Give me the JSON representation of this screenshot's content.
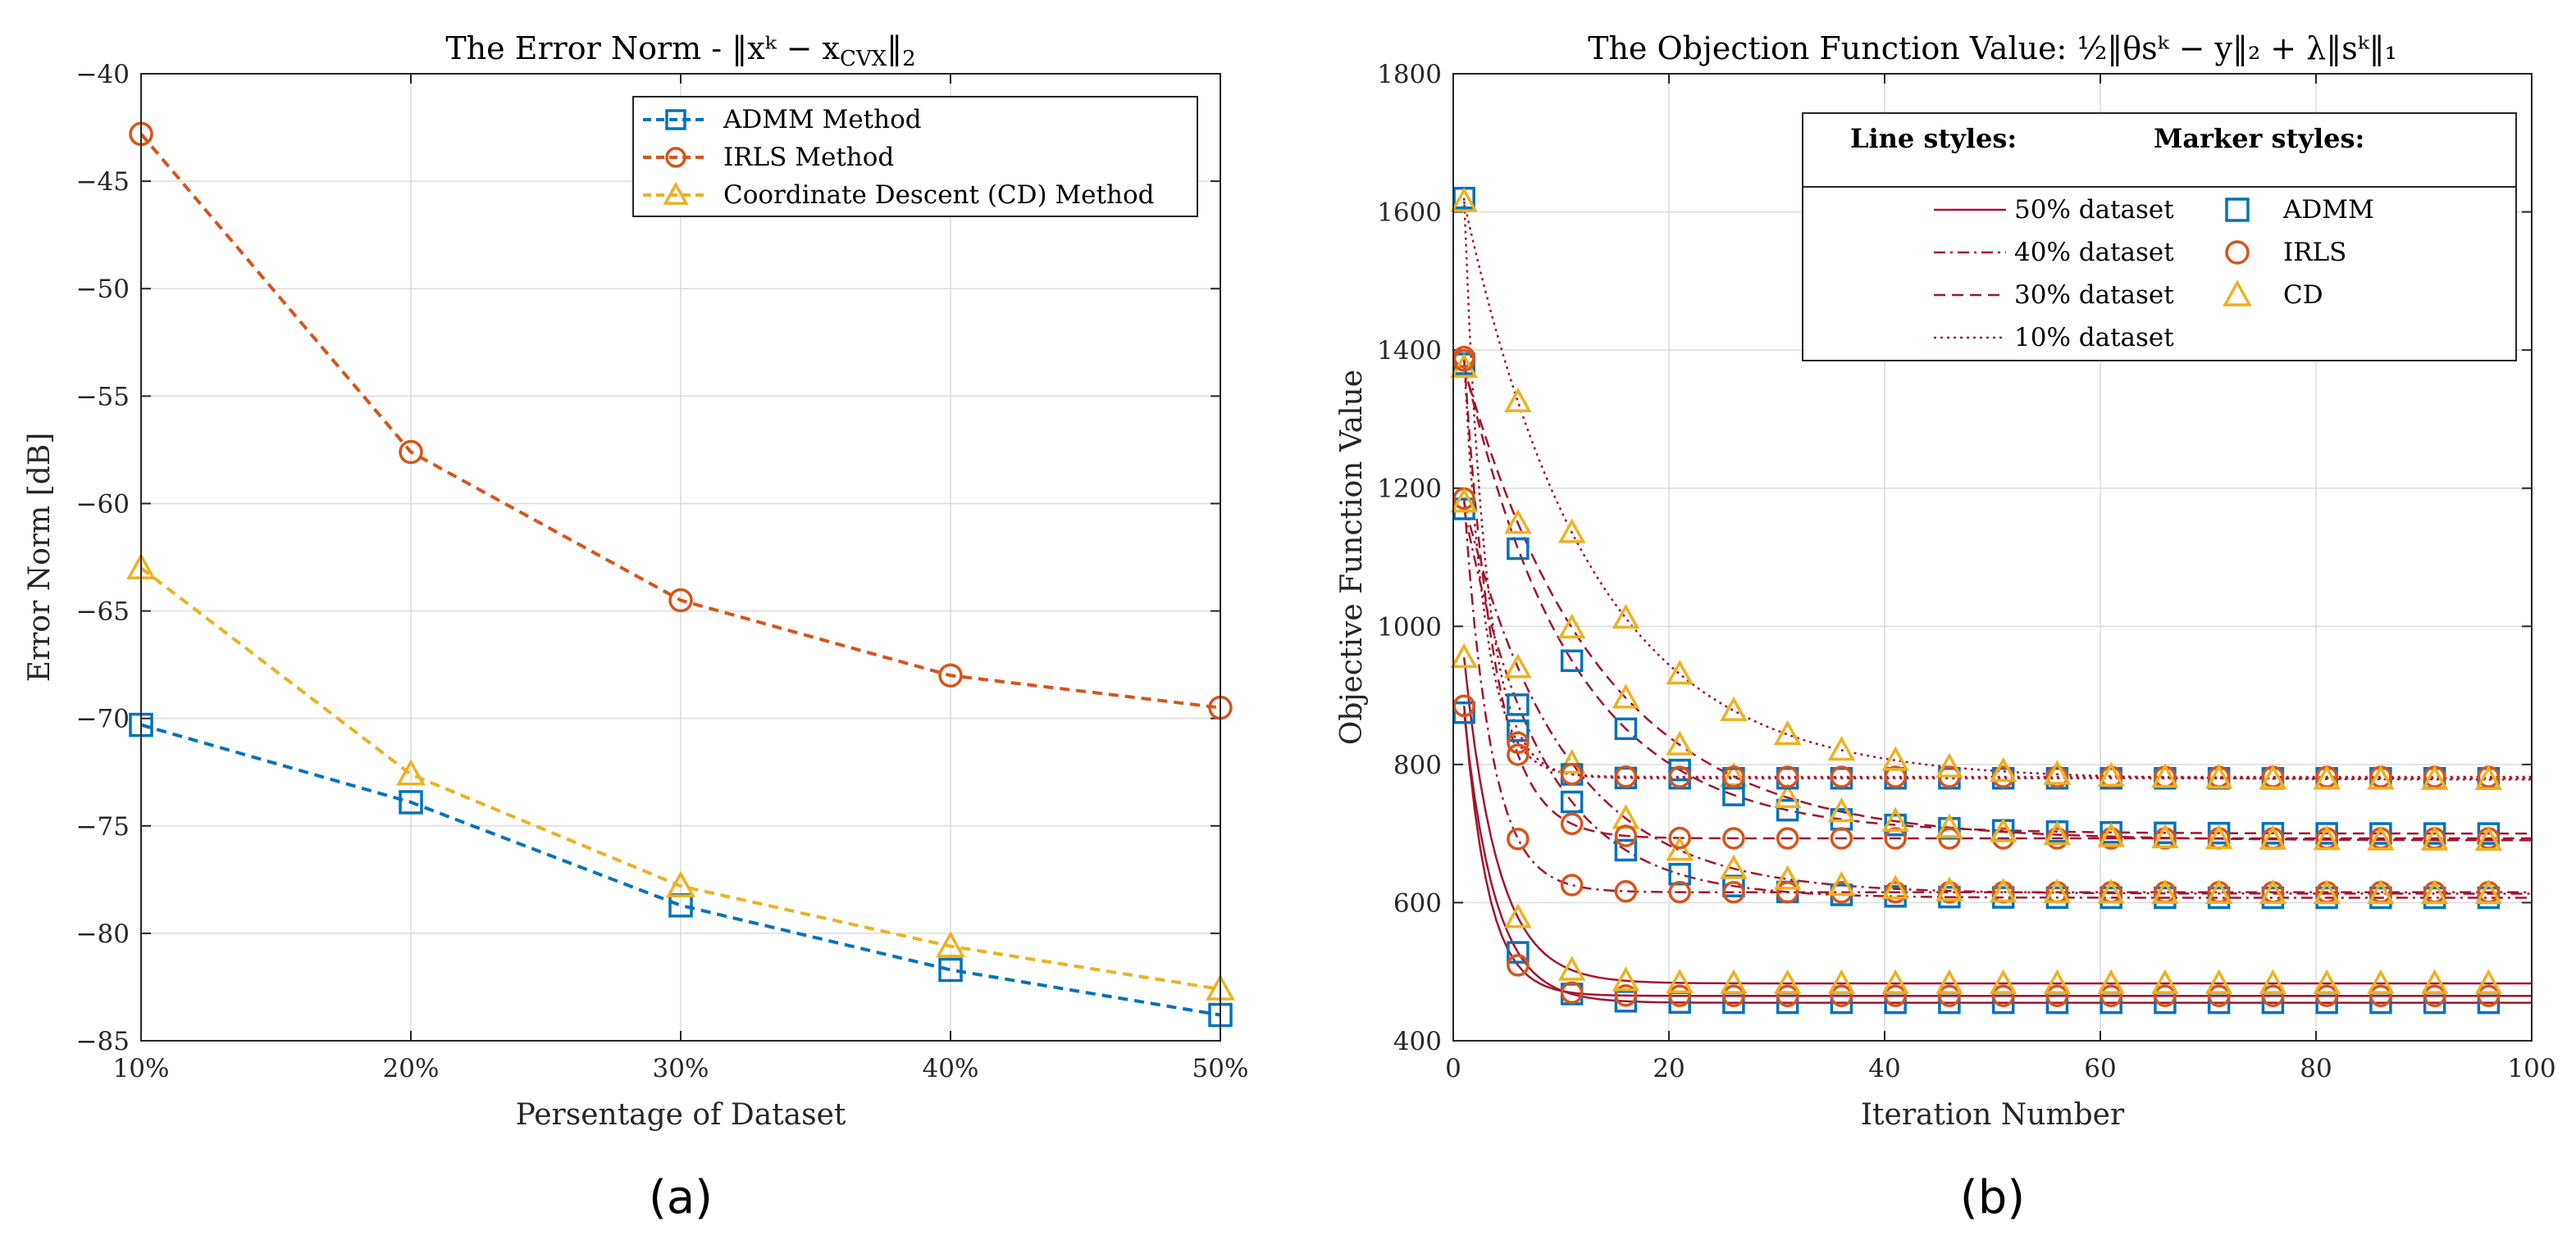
{
  "colors": {
    "admm": "#0072BD",
    "irls": "#D95319",
    "cd": "#EDB120",
    "curve": "#A2142F",
    "grid": "#dcdcdc",
    "axis": "#262626"
  },
  "chart_data": [
    {
      "panel": "a",
      "type": "line",
      "sublabel": "(a)",
      "title": "The Error Norm - ‖xᵏ − x",
      "title_sub": "CVX",
      "title_end": "‖",
      "title_end_sub": "2",
      "xlabel": "Persentage of Dataset",
      "ylabel": "Error Norm [dB]",
      "categories": [
        "10%",
        "20%",
        "30%",
        "40%",
        "50%"
      ],
      "yticks": [
        -40,
        -45,
        -50,
        -55,
        -60,
        -65,
        -70,
        -75,
        -80,
        -85
      ],
      "ylim": [
        -85,
        -40
      ],
      "grid": true,
      "legend_position": "top-right",
      "series": [
        {
          "name": "ADMM Method",
          "marker": "square",
          "color_key": "admm",
          "values": [
            -70.3,
            -73.9,
            -78.7,
            -81.7,
            -83.8
          ]
        },
        {
          "name": "IRLS Method",
          "marker": "circle",
          "color_key": "irls",
          "values": [
            -42.8,
            -57.6,
            -64.5,
            -68.0,
            -69.5
          ]
        },
        {
          "name": "Coordinate Descent (CD) Method",
          "marker": "triangle",
          "color_key": "cd",
          "values": [
            -63.0,
            -72.6,
            -77.8,
            -80.6,
            -82.6
          ]
        }
      ]
    },
    {
      "panel": "b",
      "type": "line",
      "sublabel": "(b)",
      "title": "The Objection Function Value: ½‖θsᵏ − y‖₂ + λ‖sᵏ‖₁",
      "xlabel": "Iteration Number",
      "ylabel": "Objective Function Value",
      "xlim": [
        0,
        100
      ],
      "ylim": [
        400,
        1800
      ],
      "xticks": [
        0,
        20,
        40,
        60,
        80,
        100
      ],
      "yticks": [
        400,
        600,
        800,
        1000,
        1200,
        1400,
        1600,
        1800
      ],
      "grid": true,
      "legend_position": "top-right",
      "legend_headers": {
        "line": "Line styles:",
        "marker": "Marker styles:"
      },
      "line_styles": [
        {
          "name": "50% dataset",
          "dash": "solid"
        },
        {
          "name": "40% dataset",
          "dash": "dashdot"
        },
        {
          "name": "30% dataset",
          "dash": "dashed"
        },
        {
          "name": "10% dataset",
          "dash": "dotted"
        }
      ],
      "marker_styles": [
        {
          "name": "ADMM",
          "marker": "square",
          "color_key": "admm"
        },
        {
          "name": "IRLS",
          "marker": "circle",
          "color_key": "irls"
        },
        {
          "name": "CD",
          "marker": "triangle",
          "color_key": "cd"
        }
      ],
      "marker_iterations": [
        1,
        6,
        11,
        16,
        21,
        26,
        31,
        36,
        41,
        46,
        51,
        56,
        61,
        66,
        71,
        76,
        81,
        86,
        91,
        96
      ],
      "curves": [
        {
          "dataset": "50% dataset",
          "method": "ADMM",
          "start": 875,
          "final": 455,
          "rate": 0.35
        },
        {
          "dataset": "50% dataset",
          "method": "IRLS",
          "start": 885,
          "final": 465,
          "rate": 0.45
        },
        {
          "dataset": "50% dataset",
          "method": "CD",
          "start": 955,
          "final": 483,
          "rate": 0.32
        },
        {
          "dataset": "40% dataset",
          "method": "ADMM",
          "start": 1170,
          "final": 607,
          "rate": 0.14
        },
        {
          "dataset": "40% dataset",
          "method": "IRLS",
          "start": 1185,
          "final": 615,
          "rate": 0.4
        },
        {
          "dataset": "40% dataset",
          "method": "CD",
          "start": 1180,
          "final": 613,
          "rate": 0.11
        },
        {
          "dataset": "30% dataset",
          "method": "ADMM",
          "start": 1380,
          "final": 700,
          "rate": 0.1
        },
        {
          "dataset": "30% dataset",
          "method": "IRLS",
          "start": 1390,
          "final": 693,
          "rate": 0.35
        },
        {
          "dataset": "30% dataset",
          "method": "CD",
          "start": 1375,
          "final": 690,
          "rate": 0.08
        },
        {
          "dataset": "10% dataset",
          "method": "ADMM",
          "start": 1620,
          "final": 780,
          "rate": 0.5
        },
        {
          "dataset": "10% dataset",
          "method": "IRLS",
          "start": 1385,
          "final": 782,
          "rate": 0.5
        },
        {
          "dataset": "10% dataset",
          "method": "CD",
          "start": 1615,
          "final": 778,
          "rate": 0.085
        }
      ]
    }
  ]
}
